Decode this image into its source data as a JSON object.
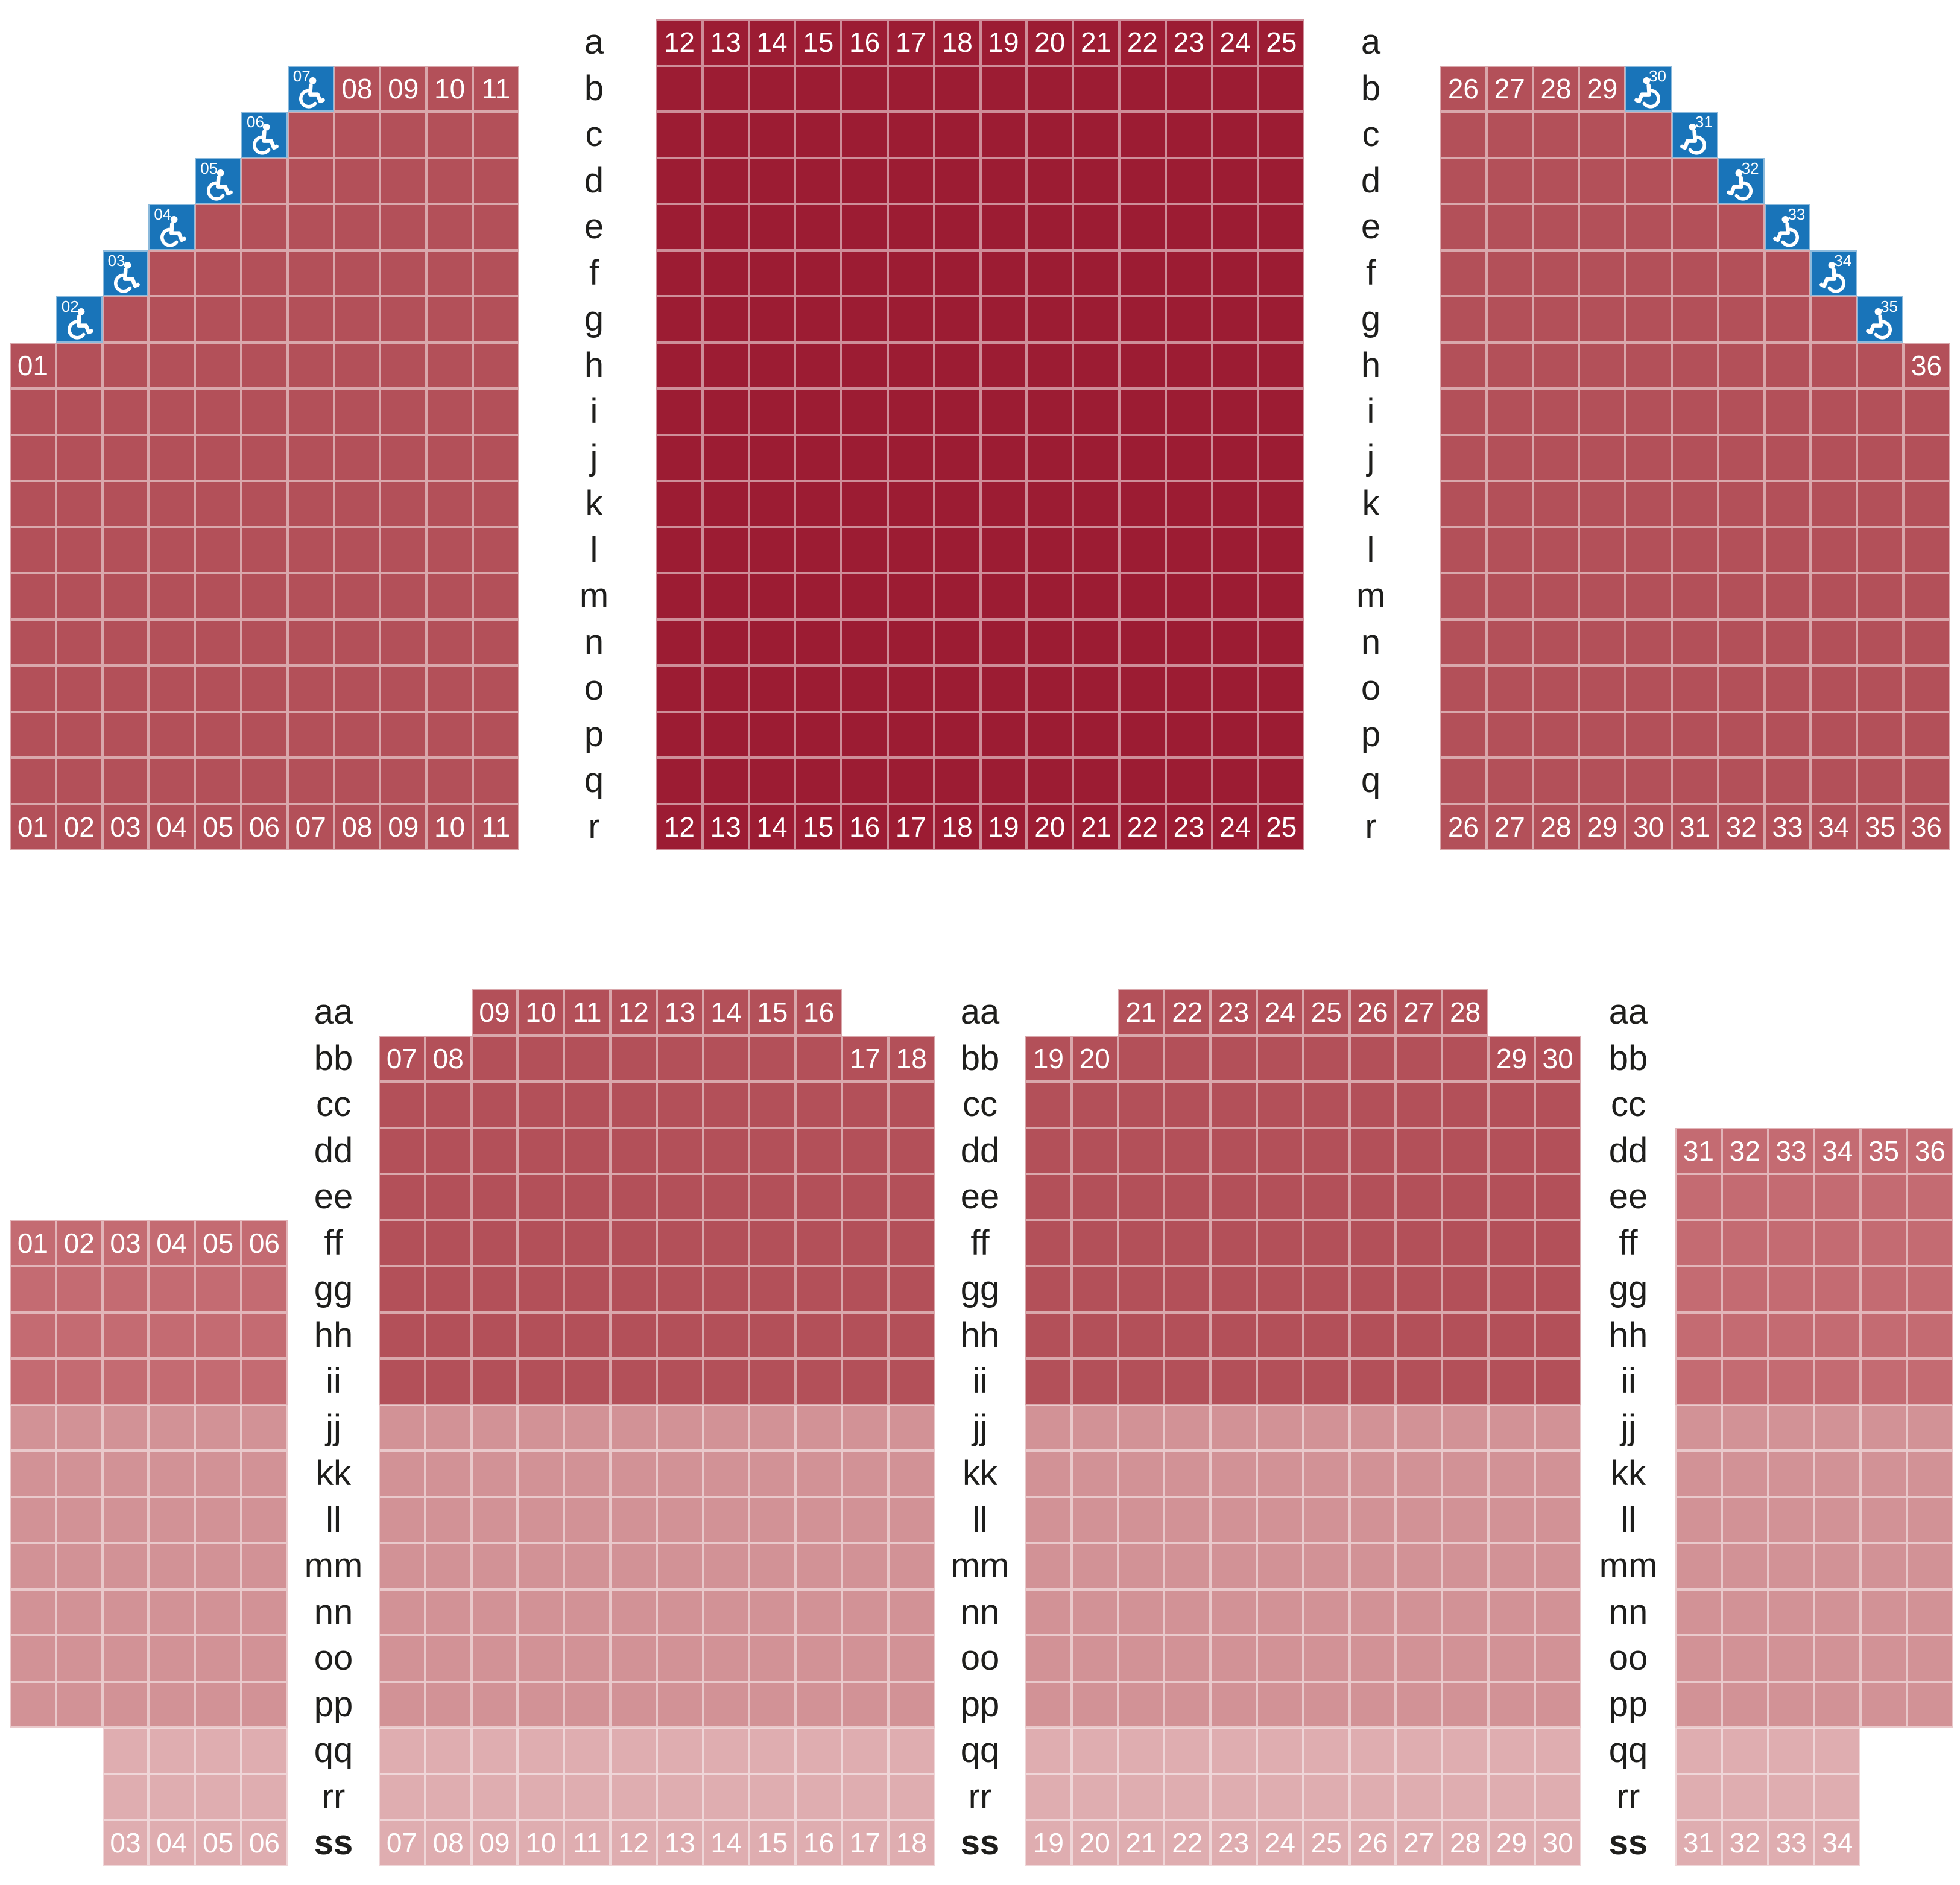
{
  "palette": {
    "dark_red": "#9c1c33",
    "medium_red": "#b35059",
    "soft_red": "#c46b72",
    "pink": "#d29296",
    "light_pink": "#dfadb0",
    "accessible_blue": "#1974b9",
    "seat_number_text": "#ffffff",
    "row_label_text": "#1e1e1c"
  },
  "top_area": {
    "row_labels": [
      "a",
      "b",
      "c",
      "d",
      "e",
      "f",
      "g",
      "h",
      "i",
      "j",
      "k",
      "l",
      "m",
      "n",
      "o",
      "p",
      "q",
      "r"
    ],
    "bold_row_labels": [],
    "sections": [
      {
        "name": "orchestra-left",
        "shade": "medium_red",
        "wheelchair_facing": "right",
        "rows": [
          {
            "row": "b",
            "from": 7,
            "to": 11,
            "wheelchair": [
              7
            ],
            "numbered": [
              7,
              8,
              9,
              10,
              11
            ]
          },
          {
            "row": "c",
            "from": 6,
            "to": 11,
            "wheelchair": [
              6
            ],
            "numbered": [
              6
            ]
          },
          {
            "row": "d",
            "from": 5,
            "to": 11,
            "wheelchair": [
              5
            ],
            "numbered": [
              5
            ]
          },
          {
            "row": "e",
            "from": 4,
            "to": 11,
            "wheelchair": [
              4
            ],
            "numbered": [
              4
            ]
          },
          {
            "row": "f",
            "from": 3,
            "to": 11,
            "wheelchair": [
              3
            ],
            "numbered": [
              3
            ]
          },
          {
            "row": "g",
            "from": 2,
            "to": 11,
            "wheelchair": [
              2
            ],
            "numbered": [
              2
            ]
          },
          {
            "row": "h",
            "from": 1,
            "to": 11,
            "numbered": [
              1
            ]
          },
          {
            "row": "i",
            "from": 1,
            "to": 11
          },
          {
            "row": "j",
            "from": 1,
            "to": 11
          },
          {
            "row": "k",
            "from": 1,
            "to": 11
          },
          {
            "row": "l",
            "from": 1,
            "to": 11
          },
          {
            "row": "m",
            "from": 1,
            "to": 11
          },
          {
            "row": "n",
            "from": 1,
            "to": 11
          },
          {
            "row": "o",
            "from": 1,
            "to": 11
          },
          {
            "row": "p",
            "from": 1,
            "to": 11
          },
          {
            "row": "q",
            "from": 1,
            "to": 11
          },
          {
            "row": "r",
            "from": 1,
            "to": 11,
            "numbered": [
              1,
              2,
              3,
              4,
              5,
              6,
              7,
              8,
              9,
              10,
              11
            ]
          }
        ]
      },
      {
        "name": "orchestra-center",
        "shade": "dark_red",
        "rows": [
          {
            "row": "a",
            "from": 12,
            "to": 25,
            "numbered": [
              12,
              13,
              14,
              15,
              16,
              17,
              18,
              19,
              20,
              21,
              22,
              23,
              24,
              25
            ]
          },
          {
            "row": "b",
            "from": 12,
            "to": 25
          },
          {
            "row": "c",
            "from": 12,
            "to": 25
          },
          {
            "row": "d",
            "from": 12,
            "to": 25
          },
          {
            "row": "e",
            "from": 12,
            "to": 25
          },
          {
            "row": "f",
            "from": 12,
            "to": 25
          },
          {
            "row": "g",
            "from": 12,
            "to": 25
          },
          {
            "row": "h",
            "from": 12,
            "to": 25
          },
          {
            "row": "i",
            "from": 12,
            "to": 25
          },
          {
            "row": "j",
            "from": 12,
            "to": 25
          },
          {
            "row": "k",
            "from": 12,
            "to": 25
          },
          {
            "row": "l",
            "from": 12,
            "to": 25
          },
          {
            "row": "m",
            "from": 12,
            "to": 25
          },
          {
            "row": "n",
            "from": 12,
            "to": 25
          },
          {
            "row": "o",
            "from": 12,
            "to": 25
          },
          {
            "row": "p",
            "from": 12,
            "to": 25
          },
          {
            "row": "q",
            "from": 12,
            "to": 25
          },
          {
            "row": "r",
            "from": 12,
            "to": 25,
            "numbered": [
              12,
              13,
              14,
              15,
              16,
              17,
              18,
              19,
              20,
              21,
              22,
              23,
              24,
              25
            ]
          }
        ]
      },
      {
        "name": "orchestra-right",
        "shade": "medium_red",
        "wheelchair_facing": "left",
        "rows": [
          {
            "row": "b",
            "from": 26,
            "to": 30,
            "wheelchair": [
              30
            ],
            "numbered": [
              26,
              27,
              28,
              29,
              30
            ]
          },
          {
            "row": "c",
            "from": 26,
            "to": 31,
            "wheelchair": [
              31
            ],
            "numbered": [
              31
            ]
          },
          {
            "row": "d",
            "from": 26,
            "to": 32,
            "wheelchair": [
              32
            ],
            "numbered": [
              32
            ]
          },
          {
            "row": "e",
            "from": 26,
            "to": 33,
            "wheelchair": [
              33
            ],
            "numbered": [
              33
            ]
          },
          {
            "row": "f",
            "from": 26,
            "to": 34,
            "wheelchair": [
              34
            ],
            "numbered": [
              34
            ]
          },
          {
            "row": "g",
            "from": 26,
            "to": 35,
            "wheelchair": [
              35
            ],
            "numbered": [
              35
            ]
          },
          {
            "row": "h",
            "from": 26,
            "to": 36,
            "numbered": [
              36
            ]
          },
          {
            "row": "i",
            "from": 26,
            "to": 36
          },
          {
            "row": "j",
            "from": 26,
            "to": 36
          },
          {
            "row": "k",
            "from": 26,
            "to": 36
          },
          {
            "row": "l",
            "from": 26,
            "to": 36
          },
          {
            "row": "m",
            "from": 26,
            "to": 36
          },
          {
            "row": "n",
            "from": 26,
            "to": 36
          },
          {
            "row": "o",
            "from": 26,
            "to": 36
          },
          {
            "row": "p",
            "from": 26,
            "to": 36
          },
          {
            "row": "q",
            "from": 26,
            "to": 36
          },
          {
            "row": "r",
            "from": 26,
            "to": 36,
            "numbered": [
              26,
              27,
              28,
              29,
              30,
              31,
              32,
              33,
              34,
              35,
              36
            ]
          }
        ]
      }
    ]
  },
  "bottom_area": {
    "row_labels": [
      "aa",
      "bb",
      "cc",
      "dd",
      "ee",
      "ff",
      "gg",
      "hh",
      "ii",
      "jj",
      "kk",
      "ll",
      "mm",
      "nn",
      "oo",
      "pp",
      "qq",
      "rr",
      "ss"
    ],
    "bold_row_labels": [
      "ss"
    ],
    "sections": [
      {
        "name": "balcony-far-left",
        "shade": "soft_red",
        "rows": [
          {
            "row": "ff",
            "from": 1,
            "to": 6,
            "shade": "soft_red",
            "numbered": [
              1,
              2,
              3,
              4,
              5,
              6
            ]
          },
          {
            "row": "gg",
            "from": 1,
            "to": 6,
            "shade": "soft_red"
          },
          {
            "row": "hh",
            "from": 1,
            "to": 6,
            "shade": "soft_red"
          },
          {
            "row": "ii",
            "from": 1,
            "to": 6,
            "shade": "soft_red"
          },
          {
            "row": "jj",
            "from": 1,
            "to": 6,
            "shade": "pink"
          },
          {
            "row": "kk",
            "from": 1,
            "to": 6,
            "shade": "pink"
          },
          {
            "row": "ll",
            "from": 1,
            "to": 6,
            "shade": "pink"
          },
          {
            "row": "mm",
            "from": 1,
            "to": 6,
            "shade": "pink"
          },
          {
            "row": "nn",
            "from": 1,
            "to": 6,
            "shade": "pink"
          },
          {
            "row": "oo",
            "from": 1,
            "to": 6,
            "shade": "pink"
          },
          {
            "row": "pp",
            "from": 1,
            "to": 6,
            "shade": "pink"
          },
          {
            "row": "qq",
            "from": 3,
            "to": 6,
            "shade": "light_pink"
          },
          {
            "row": "rr",
            "from": 3,
            "to": 6,
            "shade": "light_pink"
          },
          {
            "row": "ss",
            "from": 3,
            "to": 6,
            "shade": "light_pink",
            "numbered": [
              3,
              4,
              5,
              6
            ]
          }
        ]
      },
      {
        "name": "balcony-center-left",
        "shade": "medium_red",
        "rows": [
          {
            "row": "aa",
            "from": 9,
            "to": 16,
            "shade": "medium_red",
            "numbered": [
              9,
              10,
              11,
              12,
              13,
              14,
              15,
              16
            ]
          },
          {
            "row": "bb",
            "from": 7,
            "to": 18,
            "shade": "medium_red",
            "numbered": [
              7,
              8,
              17,
              18
            ]
          },
          {
            "row": "cc",
            "from": 7,
            "to": 18,
            "shade": "medium_red"
          },
          {
            "row": "dd",
            "from": 7,
            "to": 18,
            "shade": "medium_red"
          },
          {
            "row": "ee",
            "from": 7,
            "to": 18,
            "shade": "medium_red"
          },
          {
            "row": "ff",
            "from": 7,
            "to": 18,
            "shade": "medium_red"
          },
          {
            "row": "gg",
            "from": 7,
            "to": 18,
            "shade": "medium_red"
          },
          {
            "row": "hh",
            "from": 7,
            "to": 18,
            "shade": "medium_red"
          },
          {
            "row": "ii",
            "from": 7,
            "to": 18,
            "shade": "medium_red"
          },
          {
            "row": "jj",
            "from": 7,
            "to": 18,
            "shade": "pink"
          },
          {
            "row": "kk",
            "from": 7,
            "to": 18,
            "shade": "pink"
          },
          {
            "row": "ll",
            "from": 7,
            "to": 18,
            "shade": "pink"
          },
          {
            "row": "mm",
            "from": 7,
            "to": 18,
            "shade": "pink"
          },
          {
            "row": "nn",
            "from": 7,
            "to": 18,
            "shade": "pink"
          },
          {
            "row": "oo",
            "from": 7,
            "to": 18,
            "shade": "pink"
          },
          {
            "row": "pp",
            "from": 7,
            "to": 18,
            "shade": "pink"
          },
          {
            "row": "qq",
            "from": 7,
            "to": 18,
            "shade": "light_pink"
          },
          {
            "row": "rr",
            "from": 7,
            "to": 18,
            "shade": "light_pink"
          },
          {
            "row": "ss",
            "from": 7,
            "to": 18,
            "shade": "light_pink",
            "numbered": [
              7,
              8,
              9,
              10,
              11,
              12,
              13,
              14,
              15,
              16,
              17,
              18
            ]
          }
        ]
      },
      {
        "name": "balcony-center-right",
        "shade": "medium_red",
        "rows": [
          {
            "row": "aa",
            "from": 21,
            "to": 28,
            "shade": "medium_red",
            "numbered": [
              21,
              22,
              23,
              24,
              25,
              26,
              27,
              28
            ]
          },
          {
            "row": "bb",
            "from": 19,
            "to": 30,
            "shade": "medium_red",
            "numbered": [
              19,
              20,
              29,
              30
            ]
          },
          {
            "row": "cc",
            "from": 19,
            "to": 30,
            "shade": "medium_red"
          },
          {
            "row": "dd",
            "from": 19,
            "to": 30,
            "shade": "medium_red"
          },
          {
            "row": "ee",
            "from": 19,
            "to": 30,
            "shade": "medium_red"
          },
          {
            "row": "ff",
            "from": 19,
            "to": 30,
            "shade": "medium_red"
          },
          {
            "row": "gg",
            "from": 19,
            "to": 30,
            "shade": "medium_red"
          },
          {
            "row": "hh",
            "from": 19,
            "to": 30,
            "shade": "medium_red"
          },
          {
            "row": "ii",
            "from": 19,
            "to": 30,
            "shade": "medium_red"
          },
          {
            "row": "jj",
            "from": 19,
            "to": 30,
            "shade": "pink"
          },
          {
            "row": "kk",
            "from": 19,
            "to": 30,
            "shade": "pink"
          },
          {
            "row": "ll",
            "from": 19,
            "to": 30,
            "shade": "pink"
          },
          {
            "row": "mm",
            "from": 19,
            "to": 30,
            "shade": "pink"
          },
          {
            "row": "nn",
            "from": 19,
            "to": 30,
            "shade": "pink"
          },
          {
            "row": "oo",
            "from": 19,
            "to": 30,
            "shade": "pink"
          },
          {
            "row": "pp",
            "from": 19,
            "to": 30,
            "shade": "pink"
          },
          {
            "row": "qq",
            "from": 19,
            "to": 30,
            "shade": "light_pink"
          },
          {
            "row": "rr",
            "from": 19,
            "to": 30,
            "shade": "light_pink"
          },
          {
            "row": "ss",
            "from": 19,
            "to": 30,
            "shade": "light_pink",
            "numbered": [
              19,
              20,
              21,
              22,
              23,
              24,
              25,
              26,
              27,
              28,
              29,
              30
            ]
          }
        ]
      },
      {
        "name": "balcony-far-right",
        "shade": "soft_red",
        "rows": [
          {
            "row": "dd",
            "from": 31,
            "to": 36,
            "shade": "soft_red",
            "numbered": [
              31,
              32,
              33,
              34,
              35,
              36
            ]
          },
          {
            "row": "ee",
            "from": 31,
            "to": 36,
            "shade": "soft_red"
          },
          {
            "row": "ff",
            "from": 31,
            "to": 36,
            "shade": "soft_red"
          },
          {
            "row": "gg",
            "from": 31,
            "to": 36,
            "shade": "soft_red"
          },
          {
            "row": "hh",
            "from": 31,
            "to": 36,
            "shade": "soft_red"
          },
          {
            "row": "ii",
            "from": 31,
            "to": 36,
            "shade": "soft_red"
          },
          {
            "row": "jj",
            "from": 31,
            "to": 36,
            "shade": "pink"
          },
          {
            "row": "kk",
            "from": 31,
            "to": 36,
            "shade": "pink"
          },
          {
            "row": "ll",
            "from": 31,
            "to": 36,
            "shade": "pink"
          },
          {
            "row": "mm",
            "from": 31,
            "to": 36,
            "shade": "pink"
          },
          {
            "row": "nn",
            "from": 31,
            "to": 36,
            "shade": "pink"
          },
          {
            "row": "oo",
            "from": 31,
            "to": 36,
            "shade": "pink"
          },
          {
            "row": "pp",
            "from": 31,
            "to": 36,
            "shade": "pink"
          },
          {
            "row": "qq",
            "from": 31,
            "to": 34,
            "shade": "light_pink"
          },
          {
            "row": "rr",
            "from": 31,
            "to": 34,
            "shade": "light_pink"
          },
          {
            "row": "ss",
            "from": 31,
            "to": 34,
            "shade": "light_pink",
            "numbered": [
              31,
              32,
              33,
              34
            ]
          }
        ]
      }
    ]
  }
}
